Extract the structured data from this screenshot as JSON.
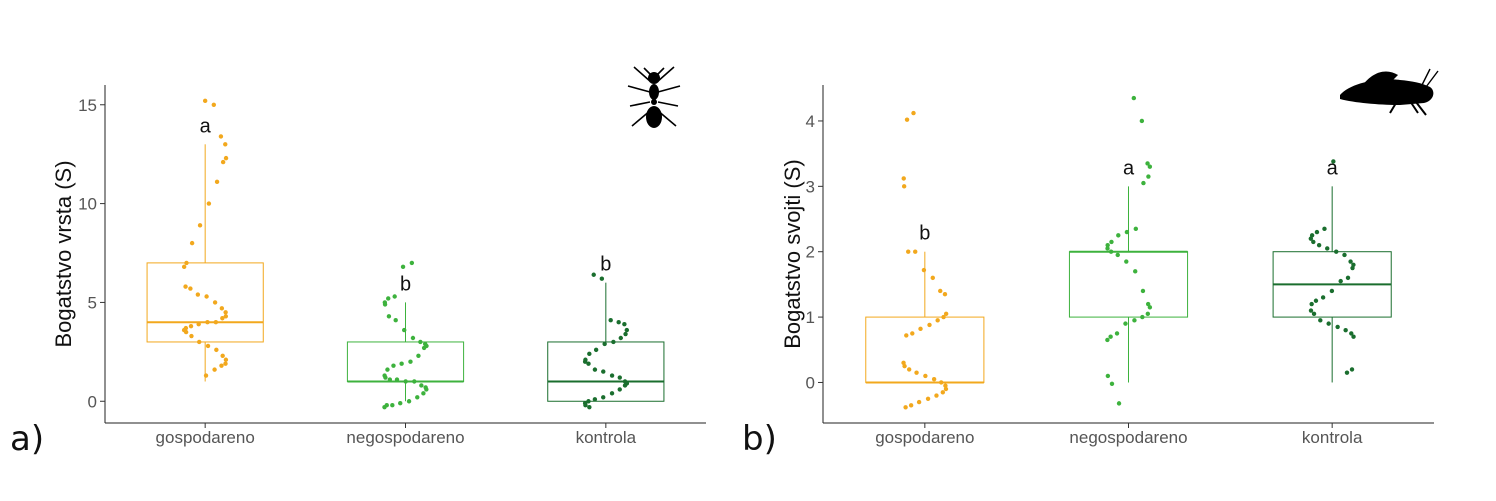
{
  "panels": [
    {
      "panel_label": "a)",
      "icon": "ant-silhouette-icon",
      "chart_data": {
        "type": "boxplot",
        "title": "",
        "ylabel": "Bogatstvo vrsta (S)",
        "xlabel": "",
        "categories": [
          "gospodareno",
          "negospodareno",
          "kontrola"
        ],
        "ylim": [
          -1.1,
          16.0
        ],
        "yticks": [
          "0",
          "5",
          "10",
          "15"
        ],
        "grid": false,
        "colors": [
          "#F2A81D",
          "#3DB23D",
          "#1A6E2E"
        ],
        "letters": [
          "a",
          "b",
          "b"
        ],
        "boxes": [
          {
            "q1": 3,
            "median": 4,
            "q3": 7,
            "whisker_low": 1,
            "whisker_high": 13
          },
          {
            "q1": 1,
            "median": 1,
            "q3": 3,
            "whisker_low": 0,
            "whisker_high": 5
          },
          {
            "q1": 0,
            "median": 1,
            "q3": 3,
            "whisker_low": 0,
            "whisker_high": 6
          }
        ],
        "points": [
          [
            15.2,
            15.0,
            13.4,
            13.0,
            12.3,
            12.1,
            11.1,
            10.0,
            8.9,
            8.0,
            7.0,
            6.8,
            5.8,
            5.7,
            5.4,
            5.3,
            5.0,
            4.7,
            4.5,
            4.3,
            4.2,
            4.0,
            4.0,
            3.9,
            3.8,
            3.7,
            3.6,
            3.5,
            3.3,
            3.0,
            2.8,
            2.6,
            2.3,
            2.1,
            1.9,
            1.8,
            1.6,
            1.3
          ],
          [
            7.0,
            6.8,
            5.3,
            5.2,
            5.0,
            4.9,
            4.3,
            4.1,
            3.6,
            3.2,
            3.0,
            2.9,
            2.8,
            2.7,
            2.3,
            2.0,
            1.9,
            1.8,
            1.6,
            1.3,
            1.2,
            1.1,
            1.1,
            1.0,
            1.0,
            0.8,
            0.7,
            0.6,
            0.4,
            0.2,
            0.0,
            -0.1,
            -0.2,
            -0.2,
            -0.3
          ],
          [
            6.4,
            6.2,
            4.1,
            4.0,
            3.9,
            3.6,
            3.4,
            3.2,
            3.0,
            2.9,
            2.6,
            2.4,
            2.1,
            2.0,
            1.9,
            1.6,
            1.5,
            1.3,
            1.2,
            1.0,
            0.9,
            0.8,
            0.6,
            0.4,
            0.2,
            0.1,
            0.0,
            -0.1,
            -0.2,
            -0.3
          ]
        ]
      }
    },
    {
      "panel_label": "b)",
      "icon": "grasshopper-silhouette-icon",
      "chart_data": {
        "type": "boxplot",
        "title": "",
        "ylabel": "Bogatstvo svojti (S)",
        "xlabel": "",
        "categories": [
          "gospodareno",
          "negospodareno",
          "kontrola"
        ],
        "ylim": [
          -0.62,
          4.55
        ],
        "yticks": [
          "0",
          "1",
          "2",
          "3",
          "4"
        ],
        "grid": false,
        "colors": [
          "#F2A81D",
          "#3DB23D",
          "#1A6E2E"
        ],
        "letters": [
          "b",
          "a",
          "a"
        ],
        "boxes": [
          {
            "q1": 0,
            "median": 0,
            "q3": 1,
            "whisker_low": 0,
            "whisker_high": 2
          },
          {
            "q1": 1,
            "median": 2,
            "q3": 2,
            "whisker_low": 0,
            "whisker_high": 3
          },
          {
            "q1": 1,
            "median": 1.5,
            "q3": 2,
            "whisker_low": 0,
            "whisker_high": 3
          }
        ],
        "points": [
          [
            4.12,
            4.02,
            3.12,
            3.0,
            2.0,
            2.0,
            1.72,
            1.6,
            1.4,
            1.35,
            1.05,
            1.0,
            0.95,
            0.88,
            0.82,
            0.75,
            0.72,
            0.3,
            0.25,
            0.2,
            0.15,
            0.1,
            0.05,
            0.0,
            -0.05,
            -0.1,
            -0.15,
            -0.2,
            -0.25,
            -0.3,
            -0.35,
            -0.38
          ],
          [
            4.35,
            4.0,
            3.35,
            3.3,
            3.15,
            3.05,
            2.35,
            2.3,
            2.25,
            2.15,
            2.1,
            2.05,
            2.0,
            1.95,
            1.85,
            1.7,
            1.4,
            1.2,
            1.15,
            1.05,
            1.0,
            0.95,
            0.9,
            0.75,
            0.7,
            0.65,
            0.1,
            -0.02,
            -0.32
          ],
          [
            3.38,
            2.35,
            2.3,
            2.25,
            2.2,
            2.15,
            2.1,
            2.05,
            2.0,
            1.95,
            1.85,
            1.8,
            1.75,
            1.6,
            1.55,
            1.4,
            1.3,
            1.25,
            1.2,
            1.1,
            1.05,
            0.95,
            0.9,
            0.85,
            0.8,
            0.75,
            0.7,
            0.2,
            0.15
          ]
        ]
      }
    }
  ]
}
